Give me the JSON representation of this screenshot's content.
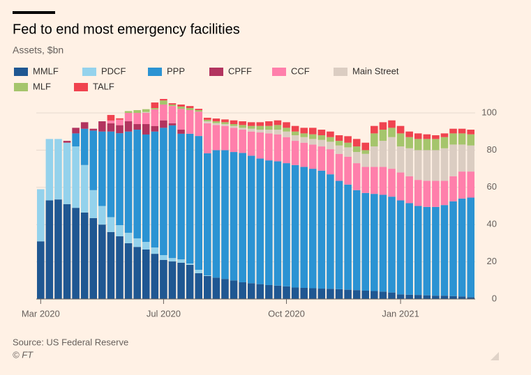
{
  "chart_data": {
    "type": "bar",
    "stacked": true,
    "title": "Fed to end most emergency facilities",
    "subtitle": "Assets, $bn",
    "source": "Source: US Federal Reserve",
    "credit": "© FT",
    "categories": [
      "Mar 2020",
      null,
      null,
      null,
      null,
      null,
      null,
      null,
      null,
      null,
      null,
      null,
      null,
      null,
      "Jul 2020",
      null,
      null,
      null,
      null,
      null,
      null,
      null,
      null,
      null,
      null,
      null,
      null,
      null,
      "Oct 2020",
      null,
      null,
      null,
      null,
      null,
      null,
      null,
      null,
      null,
      null,
      null,
      null,
      "Jan 2021",
      null,
      null,
      null,
      null,
      null,
      null,
      null,
      null
    ],
    "series": [
      {
        "name": "MMLF",
        "color": "#1f5792",
        "values": [
          31,
          53,
          53.5,
          51,
          49,
          46.5,
          43.5,
          40,
          36,
          33.7,
          30,
          28,
          26.6,
          24.3,
          21,
          20.2,
          19.5,
          18.4,
          13.9,
          12.4,
          11.5,
          10.8,
          10,
          9,
          8.5,
          8,
          7.5,
          7.2,
          6.8,
          6.2,
          6,
          5.8,
          5.6,
          5.5,
          5.3,
          5,
          4.8,
          4.5,
          4.3,
          4,
          3.5,
          2.5,
          2.3,
          2.2,
          2,
          1.8,
          1.8,
          1.6,
          1.4,
          1
        ]
      },
      {
        "name": "PDCF",
        "color": "#94d2ec",
        "values": [
          28,
          33,
          32.5,
          33,
          33,
          25.5,
          15,
          10,
          8,
          6,
          5.6,
          4.6,
          4.1,
          3.4,
          2.6,
          1.8,
          1.8,
          0.7,
          1.8,
          0.3,
          0,
          0,
          0,
          0,
          0,
          0,
          0,
          0,
          0,
          0,
          0,
          0,
          0,
          0,
          0,
          0,
          0,
          0,
          0,
          0,
          0,
          0,
          0,
          0,
          0,
          0,
          0,
          0,
          0,
          0
        ]
      },
      {
        "name": "PPP",
        "color": "#2b93d3",
        "values": [
          0,
          0,
          0,
          0,
          7,
          19.5,
          32,
          40,
          46,
          49.4,
          54.4,
          58.4,
          57.7,
          62.3,
          68.4,
          71.3,
          67.5,
          69.7,
          71.9,
          65.6,
          68.5,
          69.2,
          69,
          69.5,
          68.5,
          67.5,
          67,
          66.8,
          66.2,
          65.8,
          65,
          64.2,
          63.4,
          61.5,
          58.2,
          56.5,
          53.7,
          52.5,
          52.2,
          52,
          51.5,
          50.5,
          49.2,
          47.8,
          47.5,
          47.7,
          48.7,
          50.9,
          52.6,
          53.5
        ]
      },
      {
        "name": "CPFF",
        "color": "#b2345f",
        "values": [
          0,
          0,
          0,
          1,
          3,
          3.5,
          1,
          5.5,
          4.4,
          4.3,
          5.5,
          3,
          5.6,
          3,
          4,
          1.1,
          2.2,
          0,
          0,
          0,
          0,
          0,
          0,
          0,
          0,
          0,
          0,
          0,
          0,
          0,
          0,
          0,
          0,
          0,
          0,
          0,
          0,
          0,
          0,
          0,
          0,
          0,
          0,
          0,
          0,
          0,
          0,
          0,
          0,
          0
        ]
      },
      {
        "name": "CCF",
        "color": "#ff7fab",
        "values": [
          0,
          0,
          0,
          0,
          0,
          0,
          0,
          0,
          1.5,
          3,
          4.5,
          6,
          6,
          8.9,
          8.5,
          9.3,
          11.2,
          12.7,
          13.1,
          16.1,
          13.5,
          13,
          13,
          12.5,
          13,
          14,
          14.5,
          14.5,
          14,
          13,
          13,
          13,
          13,
          13.5,
          14.5,
          15,
          14.5,
          14,
          14.5,
          15,
          15,
          15,
          14.5,
          14,
          14,
          14,
          13,
          13.5,
          14.5,
          14
        ]
      },
      {
        "name": "Main Street",
        "color": "#dbcdc2",
        "values": [
          0,
          0,
          0,
          0,
          0,
          0,
          0,
          0,
          0,
          0,
          0,
          0,
          0.5,
          0,
          0,
          0,
          0,
          0,
          0,
          1.1,
          1,
          1,
          1,
          1,
          1.5,
          1.5,
          2,
          2.5,
          3,
          3,
          3,
          3,
          3.5,
          4,
          4.5,
          5,
          6,
          7,
          11,
          14,
          17,
          14,
          15,
          16,
          16.5,
          16.5,
          17.5,
          17,
          14.5,
          14
        ]
      },
      {
        "name": "MLF",
        "color": "#a5c56c",
        "values": [
          0,
          0,
          0,
          0,
          0,
          0,
          0,
          0,
          0,
          0,
          1,
          1.5,
          1.5,
          0.7,
          2.2,
          0.8,
          1.2,
          1.1,
          0.8,
          0.8,
          1,
          1,
          1,
          1.5,
          1.5,
          2,
          2,
          2.5,
          2,
          2,
          2,
          2.5,
          2.5,
          2.5,
          2.5,
          2.5,
          3,
          2,
          7,
          6,
          5,
          7,
          6,
          6,
          6,
          6,
          6,
          6,
          6,
          6
        ]
      },
      {
        "name": "TALF",
        "color": "#f0434f",
        "values": [
          0,
          0,
          0,
          0,
          0,
          0,
          0,
          0,
          3,
          0.7,
          0,
          0,
          0,
          3,
          0.8,
          0.7,
          1.1,
          1.1,
          0.7,
          1.1,
          1.5,
          1.5,
          2,
          2,
          2,
          2,
          2.5,
          2.5,
          3,
          3,
          3,
          3.5,
          3,
          3,
          3,
          3.5,
          4,
          4,
          4,
          4,
          4,
          4,
          3,
          3,
          2.5,
          2,
          2,
          2.5,
          2.5,
          2.5
        ]
      }
    ],
    "ylim": [
      0,
      110
    ],
    "yticks": [
      0,
      20,
      40,
      60,
      80,
      100
    ],
    "grid": true
  }
}
